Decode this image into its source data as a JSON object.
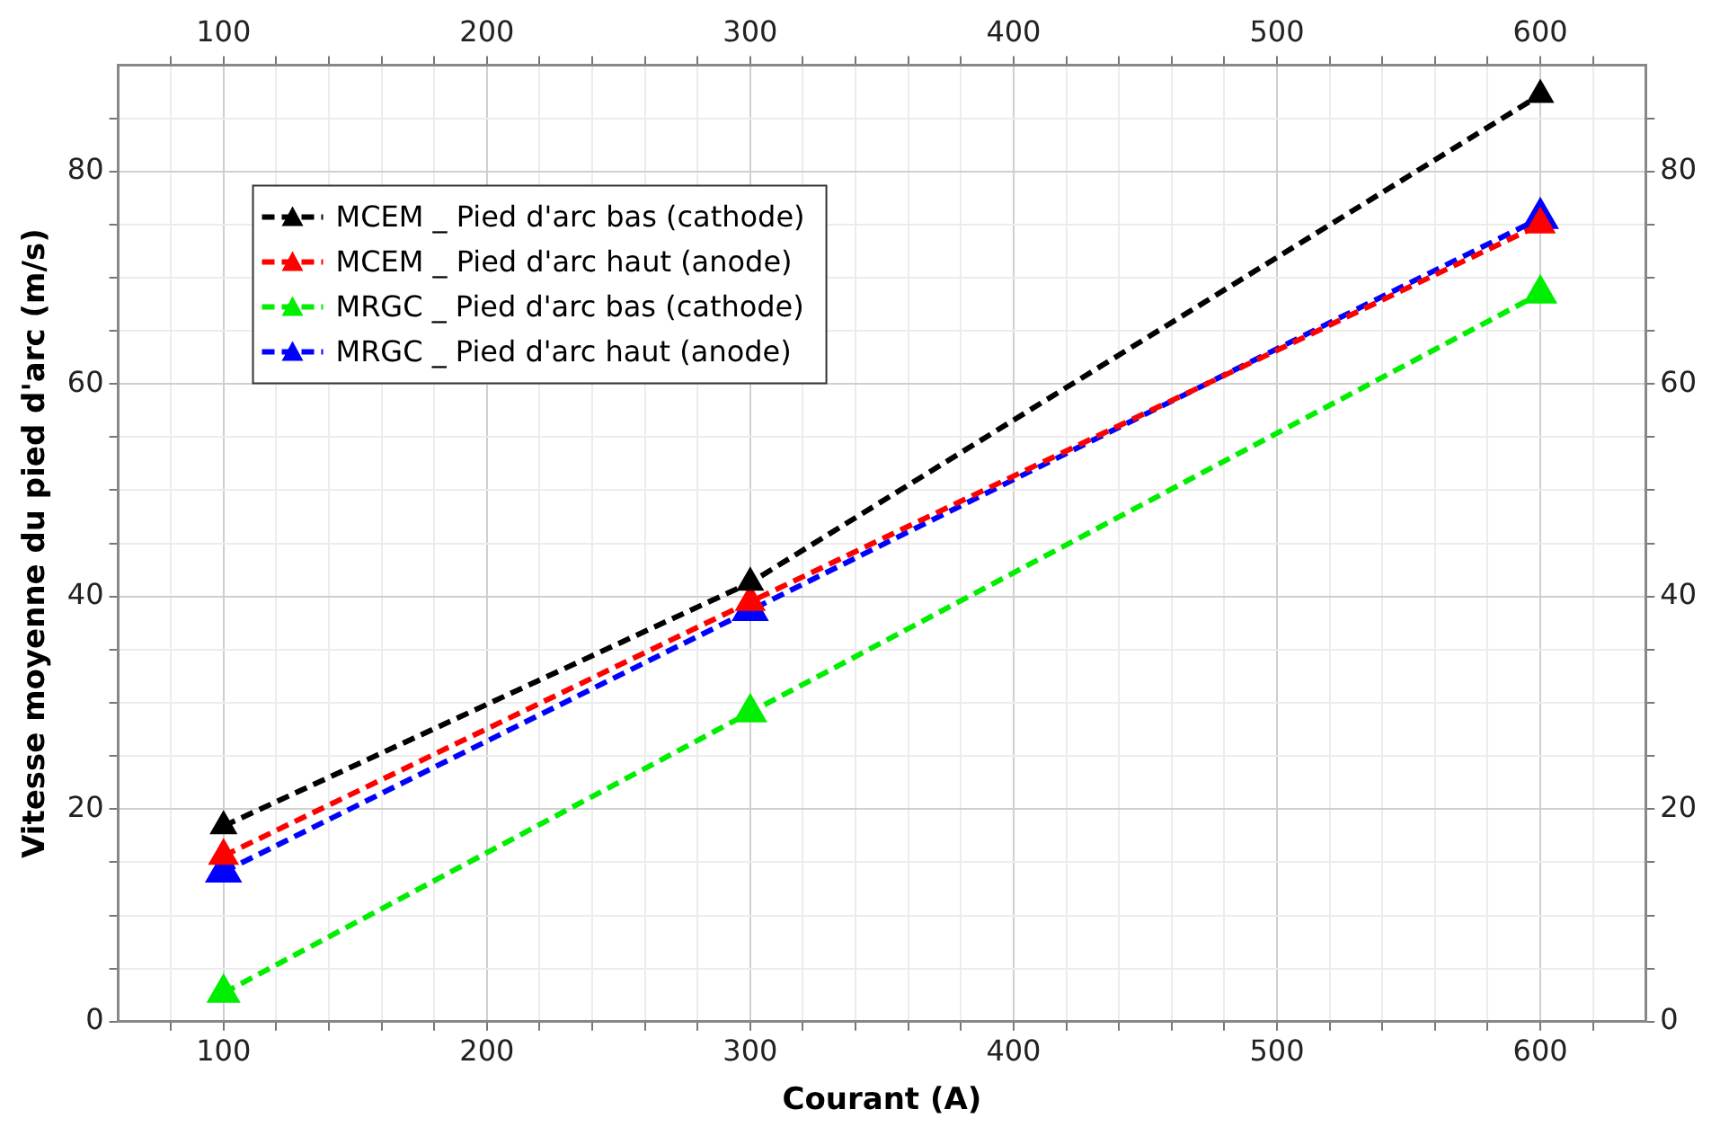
{
  "chart_data": {
    "type": "line",
    "xlabel": "Courant (A)",
    "ylabel": "Vitesse moyenne du pied d'arc (m/s)",
    "x": [
      100,
      300,
      600
    ],
    "series": [
      {
        "name": "MCEM _ Pied d'arc bas (cathode)",
        "color": "#000000",
        "values": [
          18.4,
          41.3,
          87.2
        ]
      },
      {
        "name": "MCEM _ Pied d'arc haut (anode)",
        "color": "#ff0000",
        "values": [
          15.6,
          39.5,
          75.0
        ]
      },
      {
        "name": "MRGC _ Pied d'arc bas (cathode)",
        "color": "#00ee00",
        "values": [
          2.7,
          29.1,
          68.5
        ]
      },
      {
        "name": "MRGC _ Pied d'arc haut (anode)",
        "color": "#0000ff",
        "values": [
          14.1,
          38.7,
          75.6
        ]
      }
    ],
    "xlim": [
      60,
      640
    ],
    "xticks": [
      {
        "value": 80,
        "label": null
      },
      100,
      {
        "value": 120,
        "label": null
      },
      {
        "value": 140,
        "label": null
      },
      {
        "value": 160,
        "label": null
      },
      {
        "value": 180,
        "label": null
      },
      200,
      {
        "value": 220,
        "label": null
      },
      {
        "value": 240,
        "label": null
      },
      {
        "value": 260,
        "label": null
      },
      {
        "value": 280,
        "label": null
      },
      300,
      {
        "value": 320,
        "label": null
      },
      {
        "value": 340,
        "label": null
      },
      {
        "value": 360,
        "label": null
      },
      {
        "value": 380,
        "label": null
      },
      400,
      {
        "value": 420,
        "label": null
      },
      {
        "value": 440,
        "label": null
      },
      {
        "value": 460,
        "label": null
      },
      {
        "value": 480,
        "label": null
      },
      500,
      {
        "value": 520,
        "label": null
      },
      {
        "value": 540,
        "label": null
      },
      {
        "value": 560,
        "label": null
      },
      {
        "value": 580,
        "label": null
      },
      600,
      {
        "value": 620,
        "label": null
      }
    ],
    "x2lim": [
      60,
      640
    ],
    "x2ticks": [
      {
        "value": 80,
        "label": null
      },
      100,
      {
        "value": 120,
        "label": null
      },
      {
        "value": 140,
        "label": null
      },
      {
        "value": 160,
        "label": null
      },
      {
        "value": 180,
        "label": null
      },
      200,
      {
        "value": 220,
        "label": null
      },
      {
        "value": 240,
        "label": null
      },
      {
        "value": 260,
        "label": null
      },
      {
        "value": 280,
        "label": null
      },
      300,
      {
        "value": 320,
        "label": null
      },
      {
        "value": 340,
        "label": null
      },
      {
        "value": 360,
        "label": null
      },
      {
        "value": 380,
        "label": null
      },
      400,
      {
        "value": 420,
        "label": null
      },
      {
        "value": 440,
        "label": null
      },
      {
        "value": 460,
        "label": null
      },
      {
        "value": 480,
        "label": null
      },
      500,
      {
        "value": 520,
        "label": null
      },
      {
        "value": 540,
        "label": null
      },
      {
        "value": 560,
        "label": null
      },
      {
        "value": 580,
        "label": null
      },
      600,
      {
        "value": 620,
        "label": null
      }
    ],
    "ylim": [
      0,
      90
    ],
    "yticks": [
      0,
      {
        "value": 5,
        "label": null
      },
      {
        "value": 10,
        "label": null
      },
      {
        "value": 15,
        "label": null
      },
      20,
      {
        "value": 25,
        "label": null
      },
      {
        "value": 30,
        "label": null
      },
      {
        "value": 35,
        "label": null
      },
      40,
      {
        "value": 45,
        "label": null
      },
      {
        "value": 50,
        "label": null
      },
      {
        "value": 55,
        "label": null
      },
      60,
      {
        "value": 65,
        "label": null
      },
      {
        "value": 70,
        "label": null
      },
      {
        "value": 75,
        "label": null
      },
      80,
      {
        "value": 85,
        "label": null
      }
    ],
    "y2lim": [
      0,
      90
    ],
    "y2ticks": [
      0,
      {
        "value": 5,
        "label": null
      },
      {
        "value": 10,
        "label": null
      },
      {
        "value": 15,
        "label": null
      },
      20,
      {
        "value": 25,
        "label": null
      },
      {
        "value": 30,
        "label": null
      },
      {
        "value": 35,
        "label": null
      },
      40,
      {
        "value": 45,
        "label": null
      },
      {
        "value": 50,
        "label": null
      },
      {
        "value": 55,
        "label": null
      },
      60,
      {
        "value": 65,
        "label": null
      },
      {
        "value": 70,
        "label": null
      },
      {
        "value": 75,
        "label": null
      },
      80,
      {
        "value": 85,
        "label": null
      }
    ],
    "grid": true,
    "legend": "top left",
    "marker": "triangle",
    "line_style": "dashed"
  }
}
